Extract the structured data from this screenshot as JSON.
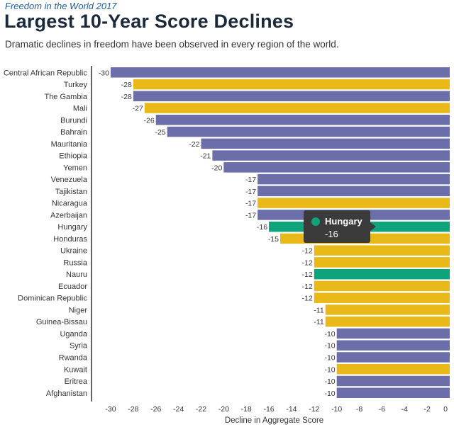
{
  "header": {
    "kicker": "Freedom in the World 2017",
    "title": "Largest 10-Year Score Declines",
    "subtitle": "Dramatic declines in freedom have been observed in every region of the world."
  },
  "colors": {
    "blue": "#6b6ea8",
    "yellow": "#e8b918",
    "green": "#0ea37a",
    "tooltip_bg": "#3b3b3b"
  },
  "chart_data": {
    "type": "bar",
    "orientation": "horizontal",
    "categories": [
      "Central African Republic",
      "Turkey",
      "The Gambia",
      "Mali",
      "Burundi",
      "Bahrain",
      "Mauritania",
      "Ethiopia",
      "Yemen",
      "Venezuela",
      "Tajikistan",
      "Nicaragua",
      "Azerbaijan",
      "Hungary",
      "Honduras",
      "Ukraine",
      "Russia",
      "Nauru",
      "Ecuador",
      "Dominican Republic",
      "Niger",
      "Guinea-Bissau",
      "Uganda",
      "Syria",
      "Rwanda",
      "Kuwait",
      "Eritrea",
      "Afghanistan"
    ],
    "values": [
      -30,
      -28,
      -28,
      -27,
      -26,
      -25,
      -22,
      -21,
      -20,
      -17,
      -17,
      -17,
      -17,
      -16,
      -15,
      -12,
      -12,
      -12,
      -12,
      -12,
      -11,
      -11,
      -10,
      -10,
      -10,
      -10,
      -10,
      -10
    ],
    "bar_colors": [
      "blue",
      "yellow",
      "blue",
      "yellow",
      "blue",
      "blue",
      "blue",
      "blue",
      "blue",
      "blue",
      "blue",
      "yellow",
      "blue",
      "green",
      "yellow",
      "yellow",
      "yellow",
      "green",
      "yellow",
      "yellow",
      "yellow",
      "yellow",
      "blue",
      "blue",
      "blue",
      "yellow",
      "blue",
      "blue"
    ],
    "data_labels": [
      "-30",
      "-28",
      "-28",
      "-27",
      "-26",
      "-25",
      "-22",
      "-21",
      "-20",
      "-17",
      "-17",
      "-17",
      "-17",
      "-16",
      "-15",
      "-12",
      "-12",
      "-12",
      "-12",
      "-12",
      "-11",
      "-11",
      "-10",
      "-10",
      "-10",
      "-10",
      "-10",
      "-10"
    ],
    "x_ticks": [
      "-30",
      "-28",
      "-26",
      "-24",
      "-22",
      "-20",
      "-18",
      "-16",
      "-14",
      "-12",
      "-10",
      "-8",
      "-6",
      "-4",
      "-2",
      "0"
    ],
    "xlim": [
      -30,
      0
    ],
    "xlabel": "Decline in Aggregate Score",
    "grid": false,
    "legend": "none",
    "tooltip": {
      "category": "Hungary",
      "value": "-16",
      "color": "green"
    }
  }
}
